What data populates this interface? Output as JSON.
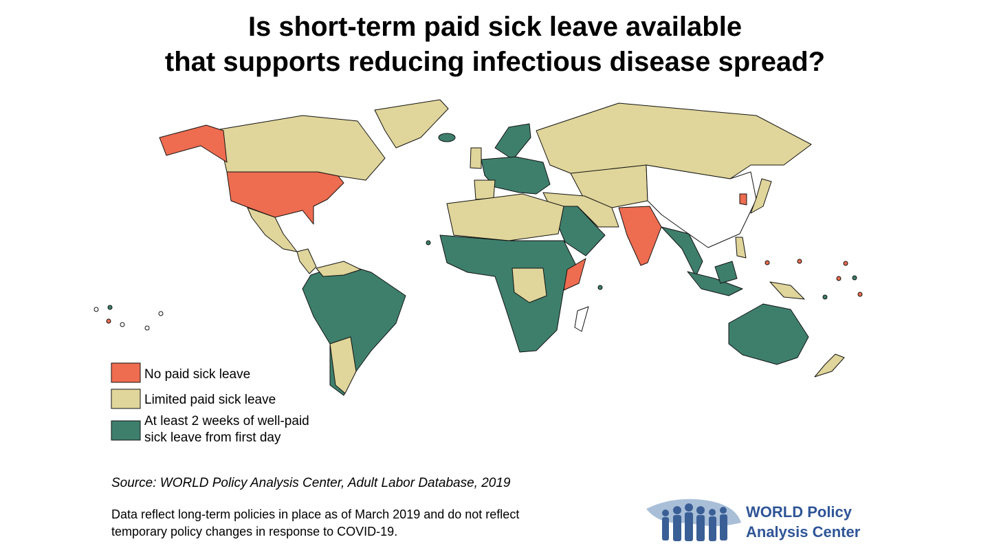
{
  "title": {
    "lines": [
      "Is short-term paid sick leave available",
      "that supports reducing infectious disease spread?"
    ]
  },
  "legend": {
    "items": [
      {
        "label": [
          "No paid sick leave"
        ],
        "color": "#ee6c50"
      },
      {
        "label": [
          "Limited paid sick leave"
        ],
        "color": "#e0d59a"
      },
      {
        "label": [
          "At least 2 weeks of well-paid",
          "sick leave from first day"
        ],
        "color": "#3e7f6c"
      }
    ]
  },
  "source": "Source: WORLD Policy Analysis Center, Adult Labor Database, 2019",
  "note": {
    "lines": [
      "Data reflect long-term policies in place as of March 2019 and do not reflect",
      "temporary policy changes in response to COVID-19."
    ]
  },
  "logo": {
    "lines": [
      "WORLD Policy",
      "Analysis Center"
    ]
  }
}
